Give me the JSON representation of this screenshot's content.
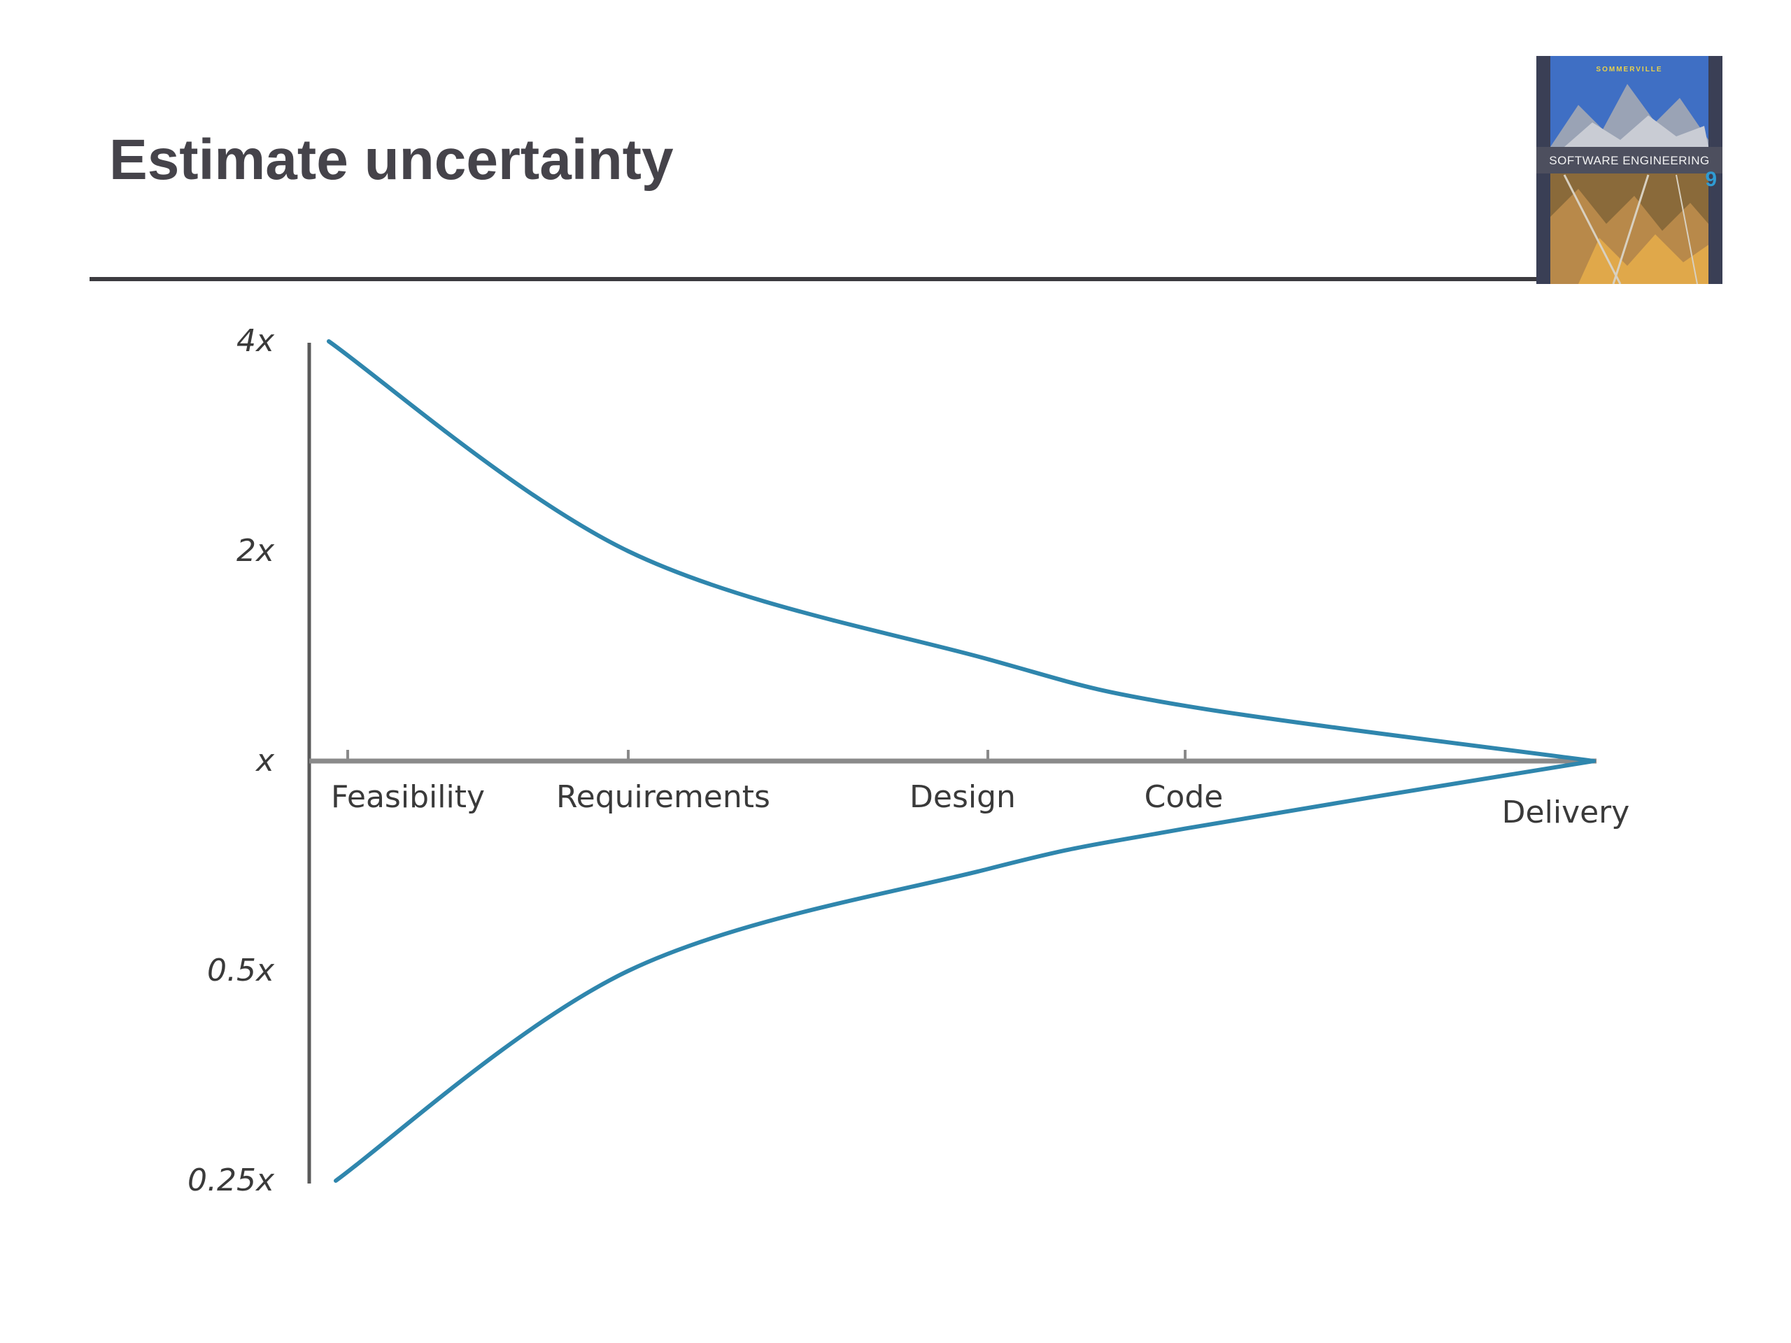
{
  "slide": {
    "title": "Estimate uncertainty"
  },
  "book_cover": {
    "author": "SOMMERVILLE",
    "title": "SOFTWARE ENGINEERING",
    "edition": "9"
  },
  "chart_data": {
    "type": "line",
    "title": "",
    "xlabel": "",
    "ylabel": "",
    "y_scale": "log2",
    "y_ticks": [
      {
        "value": 4,
        "label": "4x"
      },
      {
        "value": 2,
        "label": "2x"
      },
      {
        "value": 1,
        "label": "x"
      },
      {
        "value": 0.5,
        "label": "0.5x"
      },
      {
        "value": 0.25,
        "label": "0.25x"
      }
    ],
    "ylim": [
      0.25,
      4
    ],
    "x_ticks": [
      "Feasibility",
      "Requirements",
      "Design",
      "Code",
      "Delivery"
    ],
    "series": [
      {
        "x": [
          "Feasibility",
          "Requirements",
          "Design",
          "Code",
          "Delivery"
        ],
        "values": [
          4,
          2,
          1.4,
          1.2,
          1
        ]
      },
      {
        "x": [
          "Feasibility",
          "Requirements",
          "Design",
          "Code",
          "Delivery"
        ],
        "values": [
          0.25,
          0.5,
          0.7,
          0.8,
          1
        ]
      }
    ],
    "line_color": "#2f86ad",
    "axis_color": "#5a5a5a",
    "grid": false,
    "legend": "none"
  }
}
